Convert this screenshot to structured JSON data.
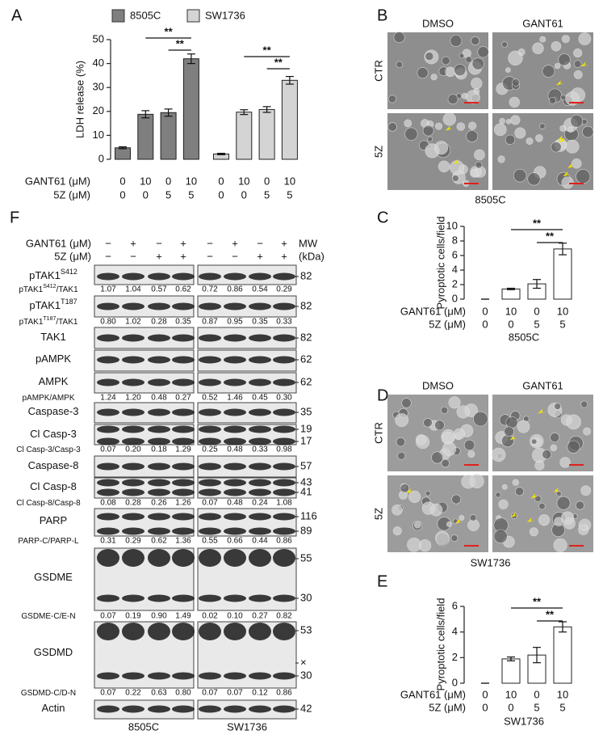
{
  "chart_data": [
    {
      "panel": "A",
      "type": "bar",
      "ylabel": "LDH release (%)",
      "ylim": [
        0,
        50
      ],
      "yticks": [
        0,
        10,
        20,
        30,
        40,
        50
      ],
      "series": [
        {
          "name": "8505C",
          "color": "#7f7f7f",
          "values": [
            4.8,
            18.8,
            19.5,
            42.0
          ],
          "errors": [
            0.4,
            1.5,
            1.5,
            2.0
          ]
        },
        {
          "name": "SW1736",
          "color": "#d4d4d4",
          "values": [
            2.2,
            19.7,
            20.8,
            33.0
          ],
          "errors": [
            0.3,
            1.0,
            1.2,
            1.6
          ]
        }
      ],
      "treatments": [
        {
          "label": "GANT61 (μM)",
          "levels": [
            0,
            10,
            0,
            10
          ]
        },
        {
          "label": "5Z (μM)",
          "levels": [
            0,
            0,
            5,
            5
          ]
        }
      ],
      "significance": [
        {
          "series": 0,
          "from": 1,
          "to": 3,
          "label": "**"
        },
        {
          "series": 0,
          "from": 2,
          "to": 3,
          "label": "**"
        },
        {
          "series": 1,
          "from": 1,
          "to": 3,
          "label": "**"
        },
        {
          "series": 1,
          "from": 2,
          "to": 3,
          "label": "**"
        }
      ]
    },
    {
      "panel": "C",
      "type": "bar",
      "ylabel": "Pyroptotic cells/field",
      "xlabel": "8505C",
      "ylim": [
        0,
        10
      ],
      "yticks": [
        0,
        2,
        4,
        6,
        8,
        10
      ],
      "color": "#ffffff",
      "values": [
        0,
        1.4,
        2.1,
        6.9
      ],
      "errors": [
        0,
        0.1,
        0.6,
        0.8
      ],
      "treatments": [
        {
          "label": "GANT61 (μM)",
          "levels": [
            0,
            10,
            0,
            10
          ]
        },
        {
          "label": "5Z (μM)",
          "levels": [
            0,
            0,
            5,
            5
          ]
        }
      ],
      "significance": [
        {
          "from": 1,
          "to": 3,
          "label": "**"
        },
        {
          "from": 2,
          "to": 3,
          "label": "**"
        }
      ]
    },
    {
      "panel": "E",
      "type": "bar",
      "ylabel": "Pyroptotic cells/field",
      "xlabel": "SW1736",
      "ylim": [
        0,
        6
      ],
      "yticks": [
        0,
        2,
        4,
        6
      ],
      "color": "#ffffff",
      "values": [
        0,
        1.9,
        2.2,
        4.4
      ],
      "errors": [
        0,
        0.15,
        0.6,
        0.4
      ],
      "treatments": [
        {
          "label": "GANT61 (μM)",
          "levels": [
            0,
            10,
            0,
            10
          ]
        },
        {
          "label": "5Z (μM)",
          "levels": [
            0,
            0,
            5,
            5
          ]
        }
      ],
      "significance": [
        {
          "from": 1,
          "to": 3,
          "label": "**"
        },
        {
          "from": 2,
          "to": 3,
          "label": "**"
        }
      ]
    }
  ],
  "micrographs": [
    {
      "panel": "B",
      "columns": [
        "DMSO",
        "GANT61"
      ],
      "rows": [
        "CTR",
        "5Z"
      ],
      "caption": "8505C"
    },
    {
      "panel": "D",
      "columns": [
        "DMSO",
        "GANT61"
      ],
      "rows": [
        "CTR",
        "5Z"
      ],
      "caption": "SW1736"
    }
  ],
  "blot": {
    "panel": "F",
    "header_rows": [
      {
        "label": "GANT61 (μM)",
        "signs": [
          "−",
          "+",
          "−",
          "+",
          "−",
          "+",
          "−",
          "+"
        ]
      },
      {
        "label": "5Z (μM)",
        "signs": [
          "−",
          "−",
          "+",
          "+",
          "−",
          "−",
          "+",
          "+"
        ]
      }
    ],
    "mw_header": [
      "MW",
      "(kDa)"
    ],
    "rows": [
      {
        "label": "pTAK1",
        "sup": "S412",
        "mw": [
          "82"
        ],
        "ratio": {
          "label": "pTAK1",
          "sup": "S412",
          "suffix": "/TAK1",
          "values": [
            "1.07",
            "1.04",
            "0.57",
            "0.62",
            "0.72",
            "0.86",
            "0.54",
            "0.29"
          ]
        }
      },
      {
        "label": "pTAK1",
        "sup": "T187",
        "mw": [
          "82"
        ],
        "ratio": {
          "label": "pTAK1",
          "sup": "T187",
          "suffix": "/TAK1",
          "values": [
            "0.80",
            "1.02",
            "0.28",
            "0.35",
            "0.87",
            "0.95",
            "0.35",
            "0.33"
          ]
        }
      },
      {
        "label": "TAK1",
        "mw": [
          "82"
        ]
      },
      {
        "label": "pAMPK",
        "mw": [
          "62"
        ]
      },
      {
        "label": "AMPK",
        "mw": [
          "62"
        ],
        "ratio": {
          "label": "pAMPK/AMPK",
          "values": [
            "1.24",
            "1.20",
            "0.48",
            "0.27",
            "0.52",
            "1.46",
            "0.45",
            "0.30"
          ]
        }
      },
      {
        "label": "Caspase-3",
        "mw": [
          "35"
        ]
      },
      {
        "label": "Cl Casp-3",
        "mw": [
          "19",
          "17"
        ],
        "ratio": {
          "label": "Cl Casp-3/Casp-3",
          "values": [
            "0.07",
            "0.20",
            "0.18",
            "1.29",
            "0.25",
            "0.48",
            "0.33",
            "0.98"
          ]
        }
      },
      {
        "label": "Caspase-8",
        "mw": [
          "57"
        ]
      },
      {
        "label": "Cl Casp-8",
        "mw": [
          "43",
          "41"
        ],
        "ratio": {
          "label": "Cl Casp-8/Casp-8",
          "values": [
            "0.08",
            "0.28",
            "0.26",
            "1.26",
            "0.07",
            "0.48",
            "0.24",
            "1.08"
          ]
        }
      },
      {
        "label": "PARP",
        "mw": [
          "116",
          "89"
        ],
        "ratio": {
          "label": "PARP-C/PARP-L",
          "values": [
            "0.31",
            "0.29",
            "0.62",
            "1.36",
            "0.55",
            "0.66",
            "0.44",
            "0.86"
          ]
        }
      },
      {
        "label": "GSDME",
        "mw": [
          "55",
          "30"
        ],
        "ratio": {
          "label": "GSDME-C/E-N",
          "values": [
            "0.07",
            "0.19",
            "0.90",
            "1.49",
            "0.02",
            "0.10",
            "0.27",
            "0.82"
          ]
        }
      },
      {
        "label": "GSDMD",
        "mw": [
          "53",
          "×",
          "30"
        ],
        "ratio": {
          "label": "GSDMD-C/D-N",
          "values": [
            "0.07",
            "0.22",
            "0.63",
            "0.80",
            "0.07",
            "0.07",
            "0.12",
            "0.86"
          ]
        }
      },
      {
        "label": "Actin",
        "mw": [
          "42"
        ]
      }
    ],
    "footer": [
      "8505C",
      "SW1736"
    ]
  }
}
